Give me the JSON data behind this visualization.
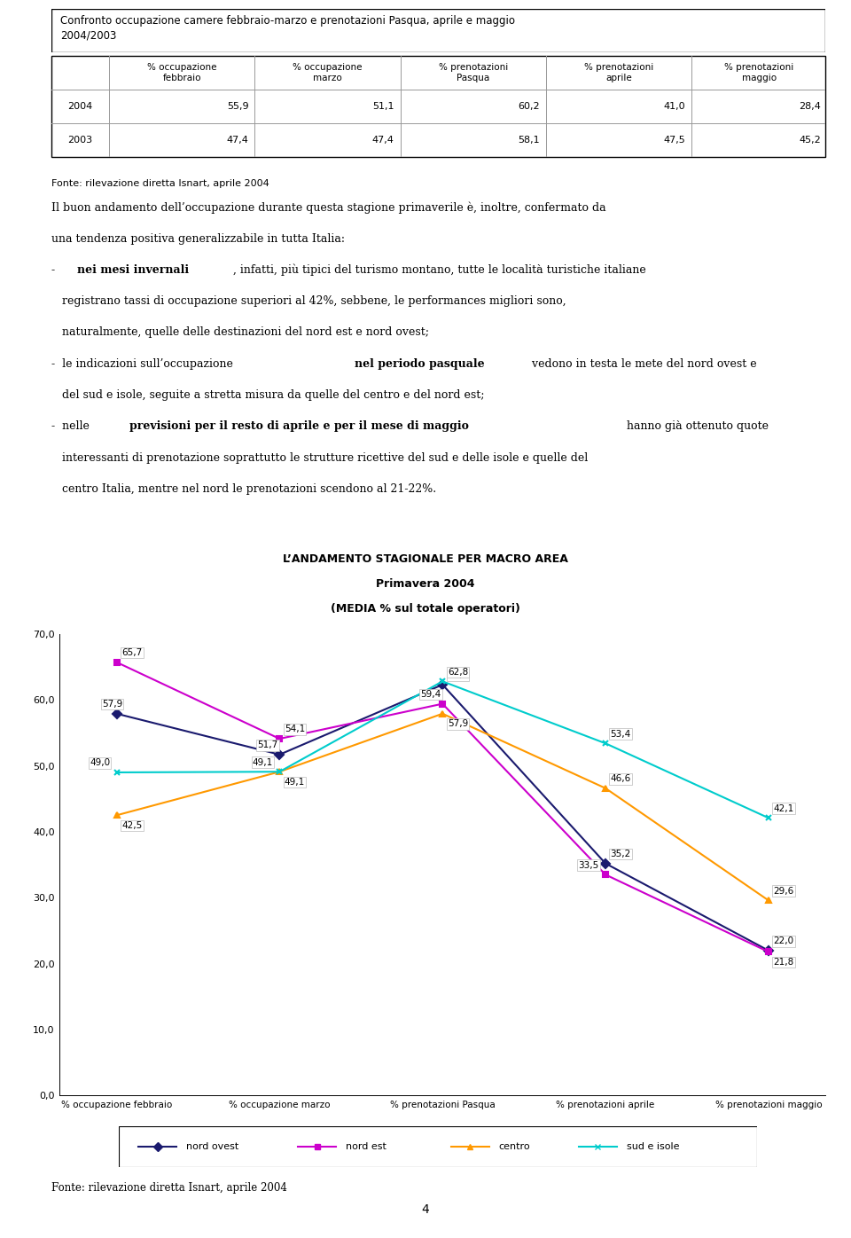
{
  "title_box": "Confronto occupazione camere febbraio-marzo e prenotazioni Pasqua, aprile e maggio\n2004/2003",
  "table_headers": [
    "",
    "% occupazione\nfebbraio",
    "% occupazione\nmarzo",
    "% prenotazioni\nPasqua",
    "% prenotazioni\naprile",
    "% prenotazioni\nmaggio"
  ],
  "table_rows": [
    [
      "2004",
      "55,9",
      "51,1",
      "60,2",
      "41,0",
      "28,4"
    ],
    [
      "2003",
      "47,4",
      "47,4",
      "58,1",
      "47,5",
      "45,2"
    ]
  ],
  "fonte1": "Fonte: rilevazione diretta Isnart, aprile 2004",
  "chart_title1": "L’ANDAMENTO STAGIONALE PER MACRO AREA",
  "chart_title2": "Primavera 2004",
  "chart_title3": "(MEDIA % sul totale operatori)",
  "x_labels": [
    "% occupazione febbraio",
    "% occupazione marzo",
    "% prenotazioni Pasqua",
    "% prenotazioni aprile",
    "% prenotazioni maggio"
  ],
  "series": [
    {
      "name": "nord ovest",
      "color": "#1a1a6e",
      "marker": "D",
      "values": [
        57.9,
        51.7,
        62.3,
        35.2,
        22.0
      ]
    },
    {
      "name": "nord est",
      "color": "#cc00cc",
      "marker": "s",
      "values": [
        65.7,
        54.1,
        59.4,
        33.5,
        21.8
      ]
    },
    {
      "name": "centro",
      "color": "#ff9900",
      "marker": "^",
      "values": [
        42.5,
        49.1,
        57.9,
        46.6,
        29.6
      ]
    },
    {
      "name": "sud e isole",
      "color": "#00cccc",
      "marker": "x",
      "values": [
        49.0,
        49.1,
        62.8,
        53.4,
        42.1
      ]
    }
  ],
  "ylim": [
    0,
    70
  ],
  "ytick_labels": [
    "0,0",
    "10,0",
    "20,0",
    "30,0",
    "40,0",
    "50,0",
    "60,0",
    "70,0"
  ],
  "fonte2": "Fonte: rilevazione diretta Isnart, aprile 2004",
  "page_number": "4",
  "background_color": "#ffffff"
}
